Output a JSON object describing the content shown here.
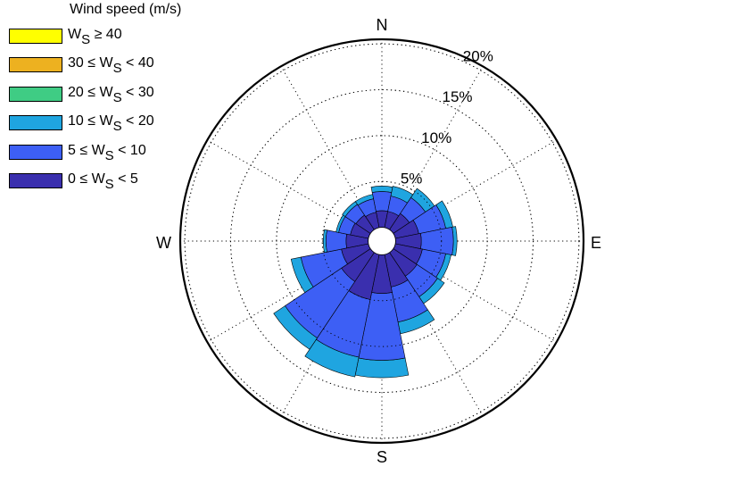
{
  "chart_data": {
    "type": "windrose",
    "legend": {
      "title": "Wind speed (m/s)",
      "placement": "top-left",
      "entries": [
        {
          "color": "#ffff00",
          "pre": "W",
          "sub": "S",
          "post": " ≥ 40"
        },
        {
          "color": "#edb120",
          "pre": "30 ≤ W",
          "sub": "S",
          "post": " < 40"
        },
        {
          "color": "#3fcc84",
          "pre": "20 ≤ W",
          "sub": "S",
          "post": " < 30"
        },
        {
          "color": "#1fa5e0",
          "pre": "10 ≤ W",
          "sub": "S",
          "post": " < 20"
        },
        {
          "color": "#3d5ff5",
          "pre": "5 ≤ W",
          "sub": "S",
          "post": " < 10"
        },
        {
          "color": "#3a2fae",
          "pre": "0 ≤ W",
          "sub": "S",
          "post": " < 5"
        }
      ]
    },
    "directions_labels": {
      "n": "N",
      "e": "E",
      "s": "S",
      "w": "W"
    },
    "radial_ticks": [
      {
        "value": 5,
        "label": "5%"
      },
      {
        "value": 10,
        "label": "10%"
      },
      {
        "value": 15,
        "label": "15%"
      },
      {
        "value": 20,
        "label": "20%"
      }
    ],
    "radial_max": 22,
    "center_offset": 1.5,
    "sector_count": 16,
    "bin_colors": [
      "#3a2fae",
      "#3d5ff5",
      "#1fa5e0",
      "#3fcc84",
      "#edb120",
      "#ffff00"
    ],
    "sectors": [
      {
        "direction_deg": 0,
        "cumulative": [
          1.8,
          3.9,
          4.5
        ]
      },
      {
        "direction_deg": 22.5,
        "cumulative": [
          1.8,
          3.5,
          4.6
        ]
      },
      {
        "direction_deg": 45,
        "cumulative": [
          2.1,
          4.2,
          5.4
        ]
      },
      {
        "direction_deg": 67.5,
        "cumulative": [
          2.6,
          5.6,
          6.4
        ]
      },
      {
        "direction_deg": 90,
        "cumulative": [
          2.8,
          6.3,
          6.7
        ]
      },
      {
        "direction_deg": 112.5,
        "cumulative": [
          3.0,
          5.6,
          6.2
        ]
      },
      {
        "direction_deg": 135,
        "cumulative": [
          3.1,
          5.8,
          6.7
        ]
      },
      {
        "direction_deg": 157.5,
        "cumulative": [
          3.6,
          7.5,
          8.8
        ]
      },
      {
        "direction_deg": 180,
        "cumulative": [
          4.2,
          11.5,
          13.4
        ]
      },
      {
        "direction_deg": 202.5,
        "cumulative": [
          5.0,
          11.4,
          13.6
        ]
      },
      {
        "direction_deg": 225,
        "cumulative": [
          3.8,
          11.2,
          12.7
        ]
      },
      {
        "direction_deg": 247.5,
        "cumulative": [
          3.0,
          7.5,
          8.6
        ]
      },
      {
        "direction_deg": 270,
        "cumulative": [
          2.4,
          4.6,
          4.9
        ]
      },
      {
        "direction_deg": 292.5,
        "cumulative": [
          2.0,
          3.3,
          3.6
        ]
      },
      {
        "direction_deg": 315,
        "cumulative": [
          1.9,
          3.3,
          3.7
        ]
      },
      {
        "direction_deg": 337.5,
        "cumulative": [
          1.7,
          3.2,
          3.7
        ]
      }
    ]
  }
}
